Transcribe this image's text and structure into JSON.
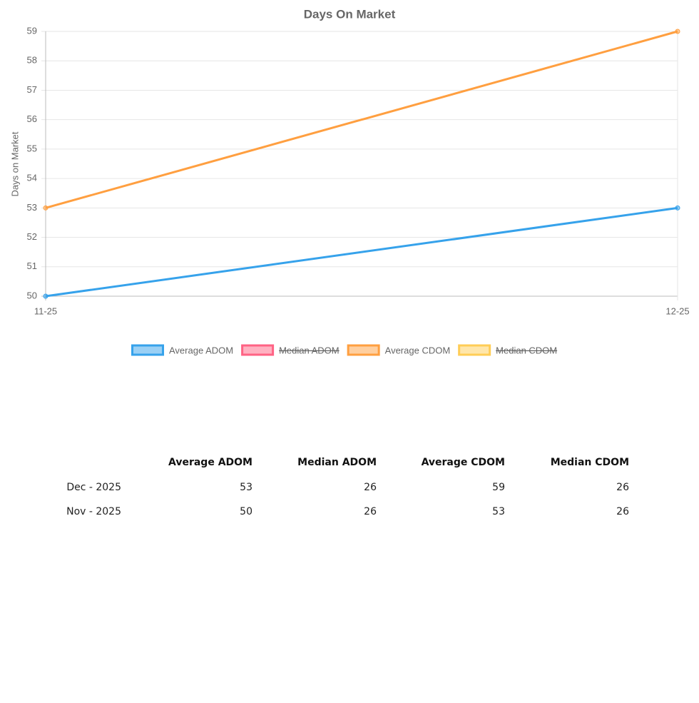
{
  "chart_data": {
    "type": "line",
    "title": "Days On Market",
    "y_label": "Days on Market",
    "categories": [
      "11-25",
      "12-25"
    ],
    "series": [
      {
        "name": "Average ADOM",
        "color": "#36a2eb",
        "values": [
          50,
          53
        ]
      },
      {
        "name": "Median ADOM",
        "color": "#ff6384",
        "hidden": true
      },
      {
        "name": "Average CDOM",
        "color": "#ff9f40",
        "values": [
          53,
          59
        ]
      },
      {
        "name": "Median CDOM",
        "color": "#ffcd56",
        "hidden": true
      }
    ],
    "ylim": [
      50,
      59
    ],
    "yticks": [
      50,
      51,
      52,
      53,
      54,
      55,
      56,
      57,
      58,
      59
    ],
    "grid": true,
    "legend": "bottom"
  },
  "table": {
    "columns": [
      "Average ADOM",
      "Median ADOM",
      "Average CDOM",
      "Median CDOM"
    ],
    "rows": [
      [
        "Dec - 2025",
        "53",
        "26",
        "59",
        "26"
      ],
      [
        "Nov - 2025",
        "50",
        "26",
        "53",
        "26"
      ]
    ]
  }
}
